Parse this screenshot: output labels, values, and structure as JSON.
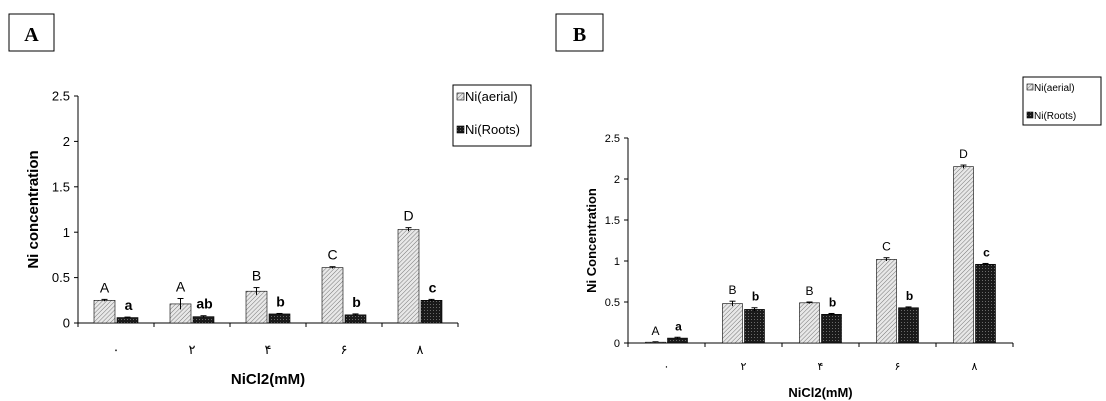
{
  "panels": [
    {
      "letter": "A",
      "legend": [
        "Ni(aerial)",
        "Ni(Roots)"
      ],
      "chart_data": {
        "type": "bar",
        "categories": [
          "٠",
          "٢",
          "۴",
          "۶",
          "٨"
        ],
        "xlabel": "NiCl2(mM)",
        "ylabel": "Ni concentration",
        "ylim": [
          0,
          2.5
        ],
        "yticks": [
          "0",
          "0.5",
          "1",
          "1.5",
          "2",
          "2.5"
        ],
        "grid": false,
        "legend_position": "top-right",
        "series": [
          {
            "name": "Ni(aerial)",
            "pattern": "hatched-light",
            "values": [
              0.25,
              0.21,
              0.35,
              0.61,
              1.03
            ],
            "errors": [
              0.01,
              0.06,
              0.04,
              0.01,
              0.02
            ],
            "labels": [
              "A",
              "A",
              "B",
              "C",
              "D"
            ]
          },
          {
            "name": "Ni(Roots)",
            "pattern": "dark-dotted",
            "values": [
              0.06,
              0.07,
              0.1,
              0.09,
              0.25
            ],
            "errors": [
              0.005,
              0.01,
              0.005,
              0.01,
              0.01
            ],
            "labels": [
              "a",
              "ab",
              "b",
              "b",
              "c"
            ]
          }
        ]
      }
    },
    {
      "letter": "B",
      "legend": [
        "Ni(aerial)",
        "Ni(Roots)"
      ],
      "chart_data": {
        "type": "bar",
        "categories": [
          "٠",
          "٢",
          "۴",
          "۶",
          "٨"
        ],
        "xlabel": "NiCl2(mM)",
        "ylabel": "Ni Concentration",
        "ylim": [
          0,
          2.5
        ],
        "yticks": [
          "0",
          "0.5",
          "1",
          "1.5",
          "2",
          "2.5"
        ],
        "grid": false,
        "legend_position": "top-right",
        "series": [
          {
            "name": "Ni(aerial)",
            "pattern": "hatched-light",
            "values": [
              0.01,
              0.48,
              0.49,
              1.02,
              2.15
            ],
            "errors": [
              0.005,
              0.03,
              0.01,
              0.02,
              0.02
            ],
            "labels": [
              "A",
              "B",
              "B",
              "C",
              "D"
            ]
          },
          {
            "name": "Ni(Roots)",
            "pattern": "dark-dotted",
            "values": [
              0.06,
              0.41,
              0.35,
              0.43,
              0.96
            ],
            "errors": [
              0.01,
              0.02,
              0.01,
              0.01,
              0.01
            ],
            "labels": [
              "a",
              "b",
              "b",
              "b",
              "c"
            ]
          }
        ]
      }
    }
  ]
}
